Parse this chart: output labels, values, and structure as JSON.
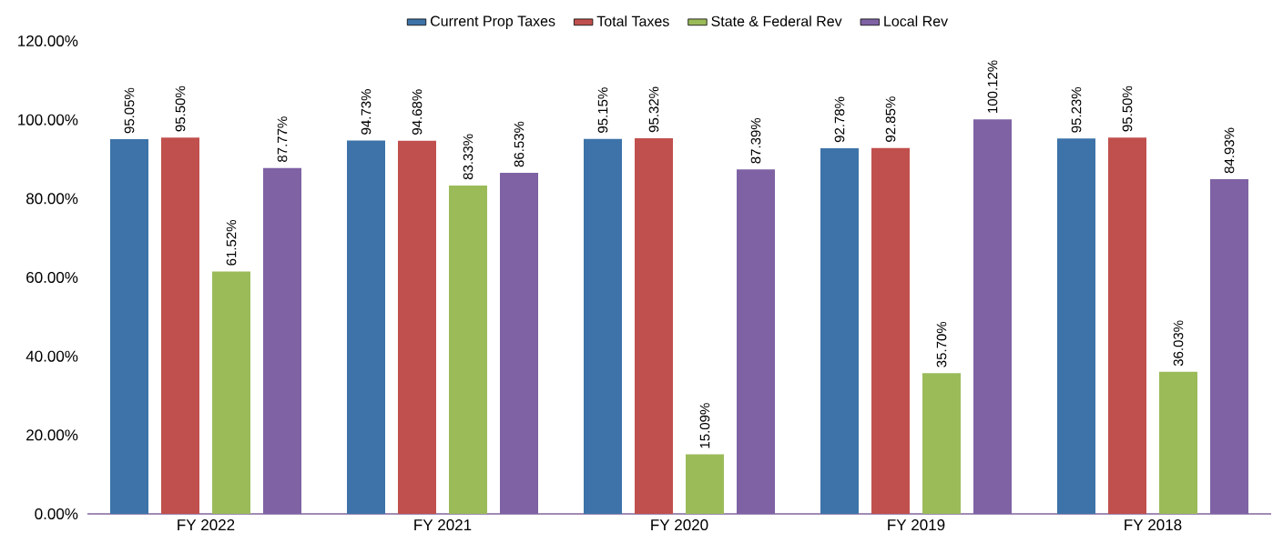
{
  "chart_data": {
    "type": "bar",
    "categories": [
      "FY 2022",
      "FY 2021",
      "FY 2020",
      "FY 2019",
      "FY 2018"
    ],
    "series": [
      {
        "name": "Current Prop Taxes",
        "color": "#3d73a8",
        "values": [
          95.05,
          94.73,
          95.15,
          92.78,
          95.23
        ],
        "value_labels": [
          "95.05%",
          "94.73%",
          "95.15%",
          "92.78%",
          "95.23%"
        ]
      },
      {
        "name": "Total Taxes",
        "color": "#c0504d",
        "values": [
          95.5,
          94.68,
          95.32,
          92.85,
          95.5
        ],
        "value_labels": [
          "95.50%",
          "94.68%",
          "95.32%",
          "92.85%",
          "95.50%"
        ]
      },
      {
        "name": "State & Federal Rev",
        "color": "#9bbb59",
        "values": [
          61.52,
          83.33,
          15.09,
          35.7,
          36.03
        ],
        "value_labels": [
          "61.52%",
          "83.33%",
          "15.09%",
          "35.70%",
          "36.03%"
        ]
      },
      {
        "name": "Local Rev",
        "color": "#7e62a4",
        "values": [
          87.77,
          86.53,
          87.39,
          100.12,
          84.93
        ],
        "value_labels": [
          "87.77%",
          "86.53%",
          "87.39%",
          "100.12%",
          "84.93%"
        ]
      }
    ],
    "ylim": [
      0,
      120
    ],
    "yticks": [
      {
        "value": 0,
        "label": "0.00%"
      },
      {
        "value": 20,
        "label": "20.00%"
      },
      {
        "value": 40,
        "label": "40.00%"
      },
      {
        "value": 60,
        "label": "60.00%"
      },
      {
        "value": 80,
        "label": "80.00%"
      },
      {
        "value": 100,
        "label": "100.00%"
      },
      {
        "value": 120,
        "label": "120.00%"
      }
    ],
    "legend": "top"
  }
}
